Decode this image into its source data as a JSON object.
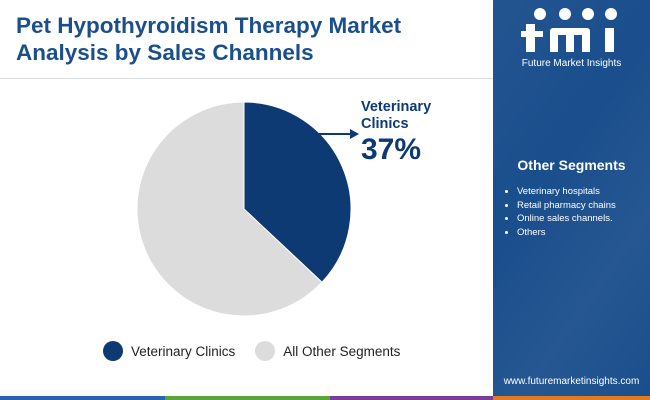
{
  "header": {
    "title": "Pet Hypothyroidism Therapy Market Analysis by Sales Channels"
  },
  "chart_data": {
    "type": "pie",
    "slices": [
      {
        "label": "Veterinary Clinics",
        "value": 37,
        "color": "#0e3a73"
      },
      {
        "label": "All Other Segments",
        "value": 63,
        "color": "#dcdcdc"
      }
    ],
    "callout": {
      "label": "Veterinary Clinics",
      "value_text": "37%"
    },
    "legend": [
      {
        "label": "Veterinary Clinics",
        "color": "#0e3a73"
      },
      {
        "label": "All Other Segments",
        "color": "#dcdcdc"
      }
    ],
    "legend_position": "bottom"
  },
  "sidebar": {
    "logo_text": "Future Market Insights",
    "title": "Other Segments",
    "items": [
      "Veterinary hospitals",
      "Retail pharmacy chains",
      "Online sales channels.",
      "Others"
    ],
    "website": "www.futuremarketinsights.com",
    "background_color": "#1a4e8c"
  },
  "footer": {
    "bar_colors": [
      "#2a63b0",
      "#5aa43a",
      "#7a3d9a",
      "#e07b24"
    ]
  }
}
